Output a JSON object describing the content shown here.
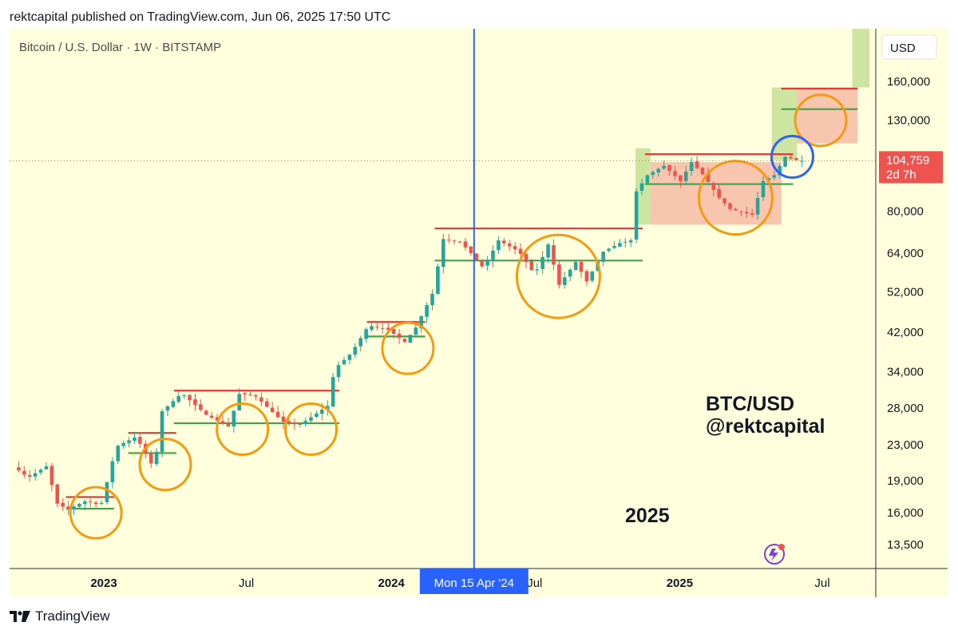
{
  "header": {
    "published_line": "rektcapital published on TradingView.com, Jun 06, 2025 17:50 UTC"
  },
  "symbol_title": "Bitcoin / U.S. Dollar · 1W · BITSTAMP",
  "currency": "USD",
  "price_badge": {
    "price": "104,759",
    "countdown": "2d 7h"
  },
  "crosshair_label": "Mon 15 Apr '24",
  "overlay_text": {
    "pair": "BTC/USD",
    "handle": "@rektcapital",
    "year": "2025"
  },
  "footer": {
    "brand": "TradingView"
  },
  "colors": {
    "background": "#ffffdd",
    "up": "#26a69a",
    "down": "#ef5350",
    "resistance": "#e53935",
    "support": "#43a047",
    "circle": "#f59a10",
    "current_circle": "#2962ff",
    "crosshair": "#2962ff"
  },
  "chart_data": {
    "type": "candlestick",
    "scale": "log",
    "x_ticks": [
      {
        "label": "2023",
        "date": "2023-01-01",
        "bold": true
      },
      {
        "label": "Jul",
        "date": "2023-07-01",
        "bold": false
      },
      {
        "label": "2024",
        "date": "2024-01-01",
        "bold": true
      },
      {
        "label": "Jul",
        "date": "2024-07-01",
        "bold": false
      },
      {
        "label": "2025",
        "date": "2025-01-01",
        "bold": true
      },
      {
        "label": "Jul",
        "date": "2025-07-01",
        "bold": false
      }
    ],
    "y_ticks": [
      {
        "label": "160,000",
        "value": 160000
      },
      {
        "label": "130,000",
        "value": 130000
      },
      {
        "label": "80,000",
        "value": 80000
      },
      {
        "label": "64,000",
        "value": 64000
      },
      {
        "label": "52,000",
        "value": 52000
      },
      {
        "label": "42,000",
        "value": 42000
      },
      {
        "label": "34,000",
        "value": 34000
      },
      {
        "label": "28,000",
        "value": 28000
      },
      {
        "label": "23,000",
        "value": 23000
      },
      {
        "label": "19,000",
        "value": 19000
      },
      {
        "label": "16,000",
        "value": 16000
      },
      {
        "label": "13,500",
        "value": 13500
      }
    ],
    "price_path": [
      [
        "2022-09-12",
        20500
      ],
      [
        "2022-10-01",
        19300
      ],
      [
        "2022-10-24",
        20500
      ],
      [
        "2022-11-07",
        16800
      ],
      [
        "2022-11-20",
        16300
      ],
      [
        "2022-12-15",
        17100
      ],
      [
        "2023-01-01",
        16600
      ],
      [
        "2023-01-21",
        22800
      ],
      [
        "2023-02-15",
        24000
      ],
      [
        "2023-03-10",
        20200
      ],
      [
        "2023-03-20",
        27500
      ],
      [
        "2023-04-14",
        30300
      ],
      [
        "2023-05-15",
        27000
      ],
      [
        "2023-06-15",
        25200
      ],
      [
        "2023-06-23",
        30200
      ],
      [
        "2023-07-15",
        30000
      ],
      [
        "2023-08-20",
        26000
      ],
      [
        "2023-09-11",
        25600
      ],
      [
        "2023-10-16",
        28300
      ],
      [
        "2023-10-25",
        34500
      ],
      [
        "2023-11-15",
        37500
      ],
      [
        "2023-12-07",
        43500
      ],
      [
        "2024-01-01",
        42500
      ],
      [
        "2024-01-22",
        39800
      ],
      [
        "2024-02-05",
        43000
      ],
      [
        "2024-02-26",
        51500
      ],
      [
        "2024-03-11",
        69000
      ],
      [
        "2024-04-01",
        68000
      ],
      [
        "2024-04-15",
        64000
      ],
      [
        "2024-05-01",
        59000
      ],
      [
        "2024-05-20",
        68500
      ],
      [
        "2024-06-15",
        64500
      ],
      [
        "2024-07-05",
        57000
      ],
      [
        "2024-07-22",
        67000
      ],
      [
        "2024-08-05",
        54000
      ],
      [
        "2024-08-26",
        61000
      ],
      [
        "2024-09-09",
        55000
      ],
      [
        "2024-09-30",
        64500
      ],
      [
        "2024-10-21",
        67500
      ],
      [
        "2024-11-04",
        68500
      ],
      [
        "2024-11-11",
        89000
      ],
      [
        "2024-11-25",
        97000
      ],
      [
        "2024-12-16",
        102000
      ],
      [
        "2025-01-06",
        94000
      ],
      [
        "2025-01-20",
        104000
      ],
      [
        "2025-02-03",
        97500
      ],
      [
        "2025-02-24",
        86000
      ],
      [
        "2025-03-10",
        81000
      ],
      [
        "2025-04-07",
        78500
      ],
      [
        "2025-04-21",
        94000
      ],
      [
        "2025-05-05",
        97000
      ],
      [
        "2025-05-19",
        107000
      ],
      [
        "2025-06-05",
        104759
      ]
    ],
    "ranges": [
      {
        "resistance": 17400,
        "support": 16350,
        "start": "2022-11-14",
        "end": "2023-01-14"
      },
      {
        "resistance": 24500,
        "support": 22000,
        "start": "2023-02-01",
        "end": "2023-04-03"
      },
      {
        "resistance": 30700,
        "support": 25800,
        "start": "2023-03-31",
        "end": "2023-10-27"
      },
      {
        "resistance": 44300,
        "support": 41000,
        "start": "2023-12-01",
        "end": "2024-02-13"
      },
      {
        "resistance": 73000,
        "support": 61500,
        "start": "2024-02-25",
        "end": "2024-11-15"
      },
      {
        "resistance": 108500,
        "support": 92500,
        "start": "2024-11-18",
        "end": "2025-05-25"
      },
      {
        "resistance": 154000,
        "support": 138000,
        "start": "2025-05-10",
        "end": "2025-08-15"
      }
    ],
    "price_line": 104759
  }
}
